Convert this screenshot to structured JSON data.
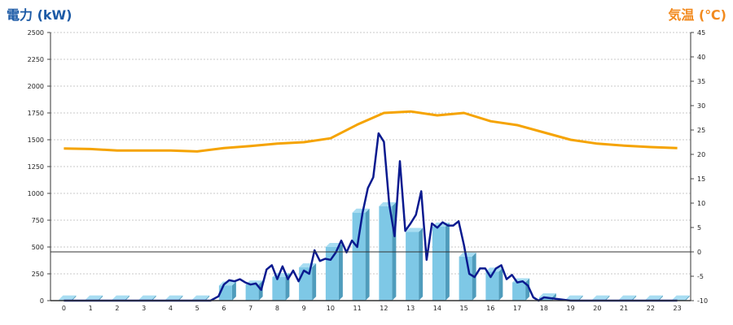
{
  "chart_data": {
    "type": "bar+line",
    "left_axis_title": "電力 (kW)",
    "right_axis_title": "気温 (℃)",
    "left_axis_color": "#1c5aa6",
    "right_axis_color": "#f28a1e",
    "ylim_left": [
      0,
      2500
    ],
    "yticks_left": [
      "0",
      "250",
      "500",
      "750",
      "1000",
      "1250",
      "1500",
      "1750",
      "2000",
      "2250",
      "2500"
    ],
    "ylim_right": [
      -10,
      45
    ],
    "yticks_right": [
      "-10",
      "-5",
      "0",
      "5",
      "10",
      "15",
      "20",
      "25",
      "30",
      "35",
      "40",
      "45"
    ],
    "categories": [
      "0",
      "1",
      "2",
      "3",
      "4",
      "5",
      "6",
      "7",
      "8",
      "9",
      "10",
      "11",
      "12",
      "13",
      "14",
      "15",
      "16",
      "17",
      "18",
      "19",
      "20",
      "21",
      "22",
      "23"
    ],
    "grid": true,
    "series": [
      {
        "kind": "bar",
        "axis": "left",
        "color": "#7ec8e6",
        "values": [
          10,
          10,
          10,
          10,
          10,
          10,
          140,
          150,
          220,
          310,
          500,
          820,
          880,
          640,
          690,
          410,
          270,
          170,
          30,
          10,
          10,
          10,
          10,
          10
        ]
      },
      {
        "kind": "line",
        "axis": "left",
        "color": "#0a1a8f",
        "x": [
          0,
          1,
          2,
          3,
          4,
          5,
          5.5,
          5.8,
          6,
          6.2,
          6.4,
          6.6,
          6.8,
          7,
          7.2,
          7.4,
          7.6,
          7.8,
          8,
          8.2,
          8.4,
          8.6,
          8.8,
          9,
          9.2,
          9.4,
          9.6,
          9.8,
          10,
          10.2,
          10.4,
          10.6,
          10.8,
          11,
          11.2,
          11.4,
          11.6,
          11.8,
          12,
          12.2,
          12.4,
          12.6,
          12.8,
          13,
          13.2,
          13.4,
          13.6,
          13.8,
          14,
          14.2,
          14.4,
          14.6,
          14.8,
          15,
          15.2,
          15.4,
          15.6,
          15.8,
          16,
          16.2,
          16.4,
          16.6,
          16.8,
          17,
          17.2,
          17.4,
          17.6,
          17.8,
          18,
          19,
          20,
          21,
          22,
          23
        ],
        "values": [
          0,
          0,
          0,
          0,
          0,
          0,
          0,
          40,
          150,
          190,
          180,
          200,
          170,
          150,
          160,
          100,
          290,
          330,
          200,
          320,
          200,
          280,
          180,
          280,
          250,
          470,
          370,
          390,
          380,
          450,
          560,
          450,
          560,
          500,
          820,
          1050,
          1150,
          1560,
          1480,
          900,
          600,
          1300,
          650,
          720,
          800,
          1020,
          380,
          720,
          680,
          730,
          700,
          700,
          740,
          520,
          250,
          220,
          300,
          300,
          220,
          300,
          330,
          200,
          240,
          170,
          180,
          140,
          30,
          0,
          30,
          0,
          0,
          0,
          0,
          0
        ]
      },
      {
        "kind": "line",
        "axis": "right",
        "color": "#f5a300",
        "x": [
          0,
          1,
          2,
          3,
          4,
          5,
          6,
          7,
          8,
          9,
          10,
          11,
          12,
          13,
          14,
          15,
          16,
          17,
          18,
          19,
          20,
          21,
          22,
          23
        ],
        "values": [
          21.2,
          21.1,
          20.8,
          20.8,
          20.8,
          20.6,
          21.3,
          21.7,
          22.2,
          22.5,
          23.3,
          26.1,
          28.5,
          28.8,
          28.0,
          28.5,
          26.8,
          26.0,
          24.5,
          23.0,
          22.2,
          21.8,
          21.5,
          21.3
        ]
      }
    ]
  }
}
